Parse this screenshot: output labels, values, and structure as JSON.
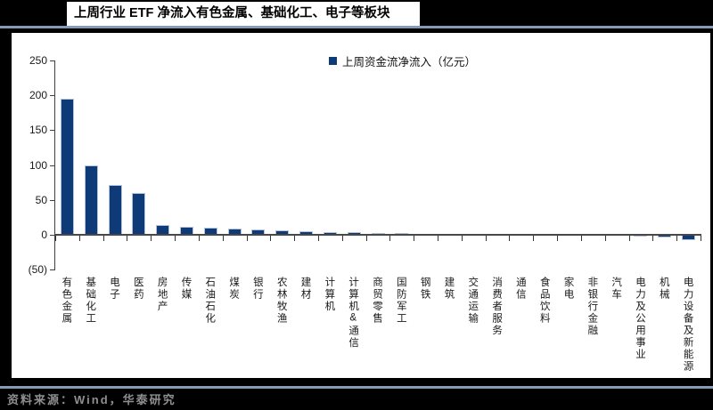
{
  "page": {
    "title": "上周行业 ETF 净流入有色金属、基础化工、电子等板块",
    "source_note": "资料来源：Wind，华泰研究"
  },
  "chart_data": {
    "type": "bar",
    "title": "上周行业 ETF 净流入有色金属、基础化工、电子等板块",
    "legend": [
      "上周资金流净流入（亿元）"
    ],
    "legend_position": "top-center",
    "grid": false,
    "categories": [
      "有色金属",
      "基础化工",
      "电子",
      "医药",
      "房地产",
      "传媒",
      "石油石化",
      "煤炭",
      "银行",
      "农林牧渔",
      "建材",
      "计算机",
      "计算机&通信",
      "商贸零售",
      "国防军工",
      "钢铁",
      "建筑",
      "交通运输",
      "消费者服务",
      "通信",
      "食品饮料",
      "家电",
      "非银行金融",
      "汽车",
      "电力及公用事业",
      "机械",
      "电力设备及新能源"
    ],
    "values": [
      195,
      100,
      72,
      60,
      14,
      12,
      10,
      9.5,
      8,
      6,
      5.5,
      4.2,
      3.3,
      3,
      2,
      1,
      0.8,
      0.7,
      0.6,
      0.5,
      0.5,
      0.4,
      0.3,
      0.2,
      -0.5,
      -2,
      -6.5
    ],
    "unit": "亿元",
    "ylim": [
      -50,
      250
    ],
    "yticks": [
      250,
      200,
      150,
      100,
      50,
      0,
      -50
    ],
    "ytick_labels": [
      "250",
      "200",
      "150",
      "100",
      "50",
      "0",
      "(50)"
    ],
    "bar_color": "#0e3a78",
    "bar_edge_color": "#b3c3da",
    "accent_rule_color": "#8699b5",
    "xlabel": "",
    "ylabel": ""
  }
}
